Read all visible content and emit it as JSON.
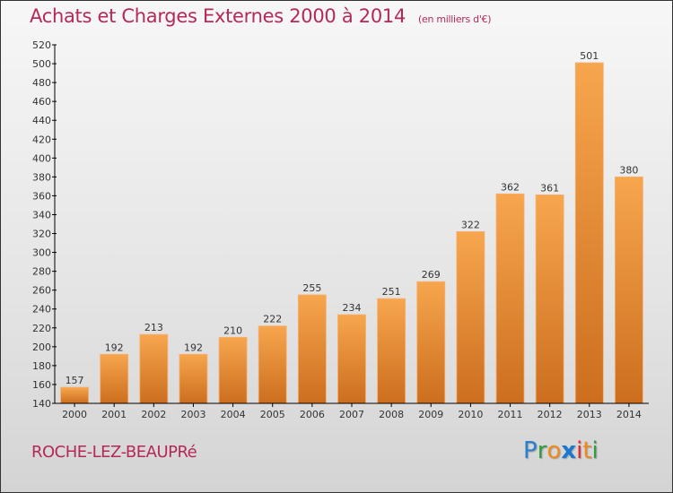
{
  "title": "Achats et Charges Externes 2000 à 2014",
  "subtitle": "(en milliers d'€)",
  "town": "ROCHE-LEZ-BEAUPRé",
  "logo": {
    "letters": [
      {
        "ch": "P",
        "color": "#2a7fd0"
      },
      {
        "ch": "r",
        "color": "#2e9e3e"
      },
      {
        "ch": "o",
        "color": "#f08a1c"
      },
      {
        "ch": "x",
        "color": "#1a78d0"
      },
      {
        "ch": "i",
        "color": "#e02c2c"
      },
      {
        "ch": "t",
        "color": "#f08a1c"
      },
      {
        "ch": "i",
        "color": "#2e9e3e"
      }
    ]
  },
  "colors": {
    "bar_top": "#f7a64e",
    "bar_bottom": "#cc6e1e",
    "title": "#b5285a"
  },
  "chart_data": {
    "type": "bar",
    "title": "Achats et Charges Externes 2000 à 2014 (en milliers d'€)",
    "xlabel": "",
    "ylabel": "",
    "categories": [
      "2000",
      "2001",
      "2002",
      "2003",
      "2004",
      "2005",
      "2006",
      "2007",
      "2008",
      "2009",
      "2010",
      "2011",
      "2012",
      "2013",
      "2014"
    ],
    "values": [
      157,
      192,
      213,
      192,
      210,
      222,
      255,
      234,
      251,
      269,
      322,
      362,
      361,
      501,
      380
    ],
    "ylim": [
      140,
      520
    ],
    "yticks": [
      140,
      160,
      180,
      200,
      220,
      240,
      260,
      280,
      300,
      320,
      340,
      360,
      380,
      400,
      420,
      440,
      460,
      480,
      500,
      520
    ],
    "grid": false,
    "legend": "none",
    "data_labels": true
  }
}
